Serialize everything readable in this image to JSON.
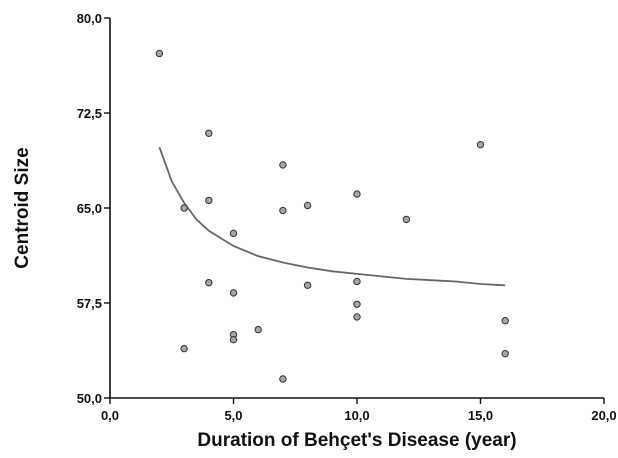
{
  "chart_data": {
    "type": "scatter",
    "title": "",
    "xlabel": "Duration of Behçet's Disease (year)",
    "ylabel": "Centroid Size",
    "xlim": [
      0,
      20
    ],
    "ylim": [
      50,
      80
    ],
    "xticks": [
      0,
      5,
      10,
      15,
      20
    ],
    "yticks": [
      50,
      57.5,
      65,
      72.5,
      80
    ],
    "xtick_labels": [
      "0,0",
      "5,0",
      "10,0",
      "15,0",
      "20,0"
    ],
    "ytick_labels": [
      "50,0",
      "57,5",
      "65,0",
      "72,5",
      "80,0"
    ],
    "grid": false,
    "points": [
      {
        "x": 2,
        "y": 77.2
      },
      {
        "x": 3,
        "y": 65.0
      },
      {
        "x": 3,
        "y": 53.9
      },
      {
        "x": 4,
        "y": 70.9
      },
      {
        "x": 4,
        "y": 65.6
      },
      {
        "x": 4,
        "y": 59.1
      },
      {
        "x": 5,
        "y": 63.0
      },
      {
        "x": 5,
        "y": 58.3
      },
      {
        "x": 5,
        "y": 55.0
      },
      {
        "x": 5,
        "y": 54.6
      },
      {
        "x": 6,
        "y": 55.4
      },
      {
        "x": 7,
        "y": 68.4
      },
      {
        "x": 7,
        "y": 64.8
      },
      {
        "x": 7,
        "y": 51.5
      },
      {
        "x": 8,
        "y": 65.2
      },
      {
        "x": 8,
        "y": 58.9
      },
      {
        "x": 10,
        "y": 66.1
      },
      {
        "x": 10,
        "y": 59.2
      },
      {
        "x": 10,
        "y": 57.4
      },
      {
        "x": 10,
        "y": 56.4
      },
      {
        "x": 12,
        "y": 64.1
      },
      {
        "x": 15,
        "y": 70.0
      },
      {
        "x": 16,
        "y": 56.1
      },
      {
        "x": 16,
        "y": 53.5
      }
    ],
    "trend": {
      "type": "curve",
      "x": [
        2,
        2.5,
        3,
        3.5,
        4,
        5,
        6,
        7,
        8,
        9,
        10,
        11,
        12,
        13,
        14,
        15,
        16
      ],
      "y": [
        69.8,
        67.1,
        65.4,
        64.1,
        63.2,
        62.0,
        61.2,
        60.7,
        60.3,
        60.0,
        59.8,
        59.6,
        59.4,
        59.3,
        59.2,
        59.0,
        58.9
      ]
    }
  }
}
